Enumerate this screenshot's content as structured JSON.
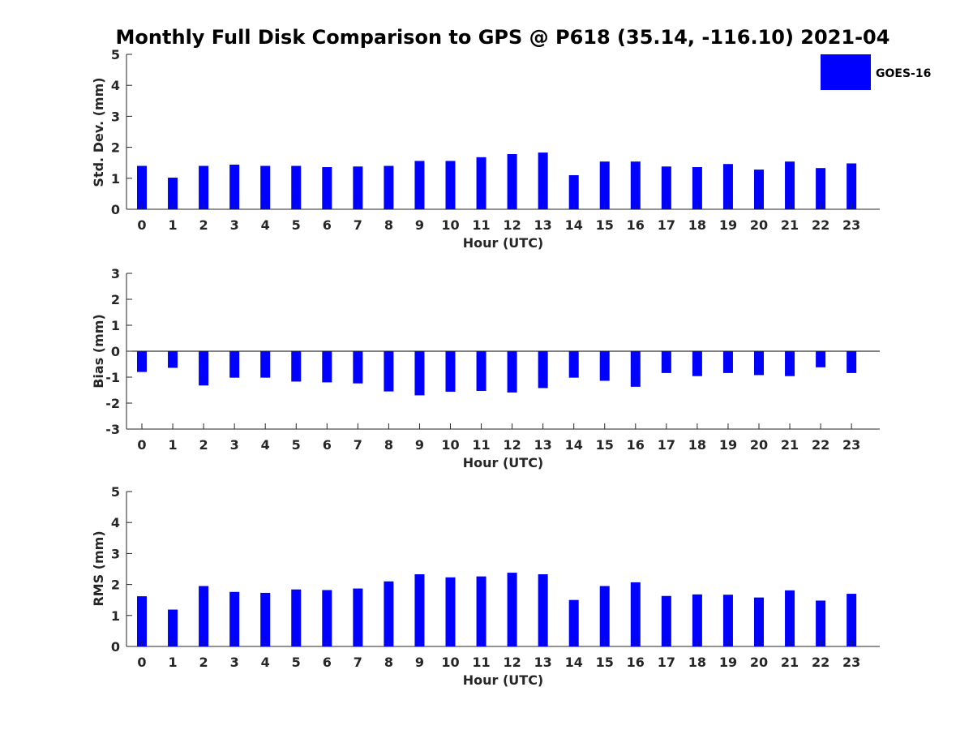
{
  "chart_data": [
    {
      "type": "bar",
      "title": "Monthly Full Disk Comparison to GPS @ P618 (35.14, -116.10) 2021-04",
      "xlabel": "Hour (UTC)",
      "ylabel": "Std. Dev. (mm)",
      "categories": [
        "0",
        "1",
        "2",
        "3",
        "4",
        "5",
        "6",
        "7",
        "8",
        "9",
        "10",
        "11",
        "12",
        "13",
        "14",
        "15",
        "16",
        "17",
        "18",
        "19",
        "20",
        "21",
        "22",
        "23"
      ],
      "ylim": [
        0,
        5
      ],
      "yticks": [
        "0",
        "1",
        "2",
        "3",
        "4",
        "5"
      ],
      "series": [
        {
          "name": "GOES-16",
          "color": "#0000ff",
          "values": [
            1.4,
            1.02,
            1.4,
            1.44,
            1.4,
            1.4,
            1.36,
            1.38,
            1.4,
            1.56,
            1.56,
            1.68,
            1.78,
            1.83,
            1.1,
            1.54,
            1.54,
            1.38,
            1.36,
            1.46,
            1.28,
            1.54,
            1.33,
            1.48
          ]
        }
      ],
      "legend": {
        "entries": [
          "GOES-16"
        ],
        "placement": "top-right outside"
      },
      "grid": false
    },
    {
      "type": "bar",
      "title": "",
      "xlabel": "Hour (UTC)",
      "ylabel": "Bias (mm)",
      "categories": [
        "0",
        "1",
        "2",
        "3",
        "4",
        "5",
        "6",
        "7",
        "8",
        "9",
        "10",
        "11",
        "12",
        "13",
        "14",
        "15",
        "16",
        "17",
        "18",
        "19",
        "20",
        "21",
        "22",
        "23"
      ],
      "ylim": [
        -3,
        3
      ],
      "yticks": [
        "-3",
        "-2",
        "-1",
        "0",
        "1",
        "2",
        "3"
      ],
      "series": [
        {
          "name": "GOES-16",
          "color": "#0000ff",
          "values": [
            -0.8,
            -0.64,
            -1.32,
            -1.02,
            -1.02,
            -1.17,
            -1.2,
            -1.24,
            -1.55,
            -1.7,
            -1.56,
            -1.53,
            -1.59,
            -1.42,
            -1.02,
            -1.14,
            -1.37,
            -0.84,
            -0.96,
            -0.84,
            -0.92,
            -0.96,
            -0.62,
            -0.84
          ]
        }
      ],
      "grid": false,
      "zero_line": true
    },
    {
      "type": "bar",
      "title": "",
      "xlabel": "Hour (UTC)",
      "ylabel": "RMS (mm)",
      "categories": [
        "0",
        "1",
        "2",
        "3",
        "4",
        "5",
        "6",
        "7",
        "8",
        "9",
        "10",
        "11",
        "12",
        "13",
        "14",
        "15",
        "16",
        "17",
        "18",
        "19",
        "20",
        "21",
        "22",
        "23"
      ],
      "ylim": [
        0,
        5
      ],
      "yticks": [
        "0",
        "1",
        "2",
        "3",
        "4",
        "5"
      ],
      "series": [
        {
          "name": "GOES-16",
          "color": "#0000ff",
          "values": [
            1.62,
            1.19,
            1.95,
            1.76,
            1.73,
            1.84,
            1.82,
            1.87,
            2.1,
            2.33,
            2.23,
            2.26,
            2.38,
            2.33,
            1.5,
            1.95,
            2.07,
            1.63,
            1.68,
            1.67,
            1.58,
            1.81,
            1.48,
            1.7
          ]
        }
      ],
      "grid": false
    }
  ]
}
